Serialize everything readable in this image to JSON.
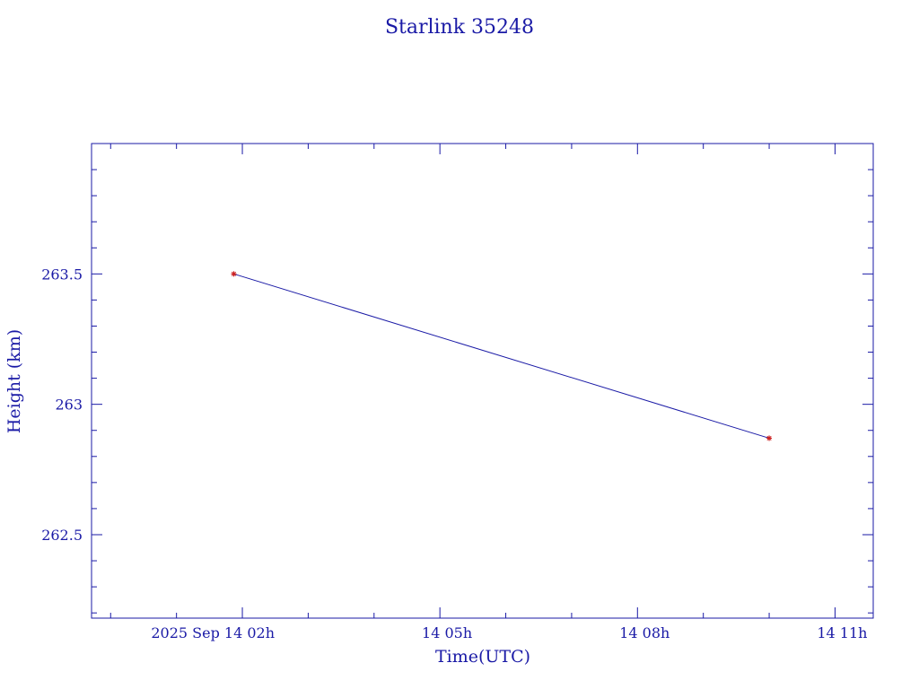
{
  "chart_data": {
    "type": "line",
    "title": "Starlink 35248",
    "xlabel": "Time(UTC)",
    "ylabel": "Height (km)",
    "x_tick_labels": [
      "2025 Sep 14  02h",
      "14  05h",
      "14  08h",
      "14  11h"
    ],
    "x_ticks_hours": [
      2,
      5,
      8,
      11
    ],
    "y_tick_labels": [
      "263.5",
      "263",
      "262.5"
    ],
    "y_ticks": [
      263.5,
      263.0,
      262.5
    ],
    "xlim_hours": [
      -0.29,
      11.58
    ],
    "ylim": [
      262.18,
      264.0
    ],
    "series": [
      {
        "x_hours": [
          1.87,
          10.0
        ],
        "x": [
          "2025-09-14 01:52",
          "2025-09-14 10:00"
        ],
        "values": [
          263.5,
          262.87
        ]
      }
    ],
    "colors": {
      "axes": "#1a1aa6",
      "line": "#1a1aa6",
      "marker": "#cc2222"
    },
    "grid": false
  }
}
